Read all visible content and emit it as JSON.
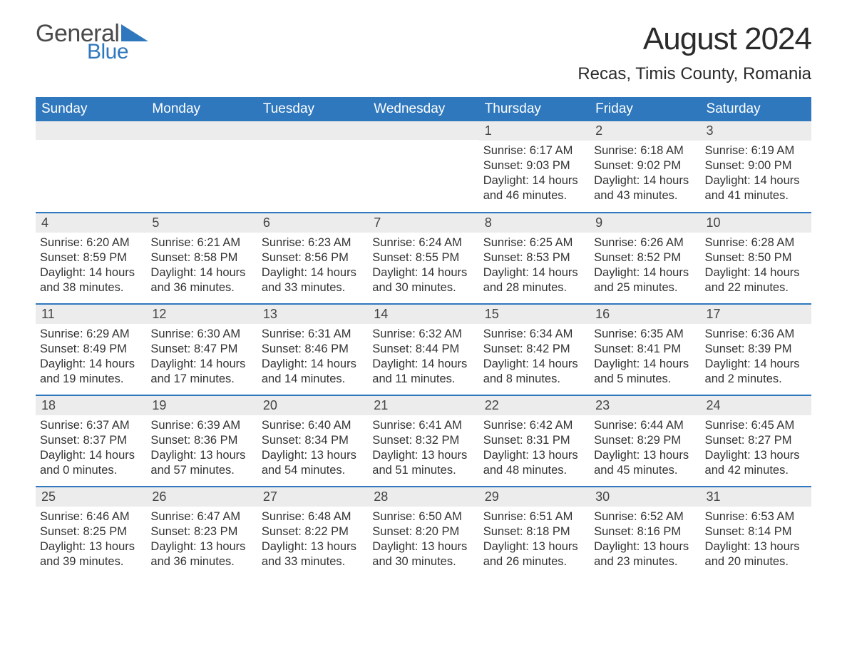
{
  "brand": {
    "word1": "General",
    "word2": "Blue",
    "accent_color": "#2f78bd",
    "text_color": "#4a4a4a"
  },
  "title": "August 2024",
  "location": "Recas, Timis County, Romania",
  "colors": {
    "header_bg": "#2f78bd",
    "header_text": "#ffffff",
    "daynum_bg": "#ececec",
    "body_text": "#333333",
    "rule": "#2f78bd",
    "page_bg": "#ffffff"
  },
  "weekdays": [
    "Sunday",
    "Monday",
    "Tuesday",
    "Wednesday",
    "Thursday",
    "Friday",
    "Saturday"
  ],
  "labels": {
    "sunrise": "Sunrise:",
    "sunset": "Sunset:",
    "daylight": "Daylight:"
  },
  "first_weekday_index": 4,
  "days": [
    {
      "n": 1,
      "sunrise": "6:17 AM",
      "sunset": "9:03 PM",
      "daylight": "14 hours and 46 minutes."
    },
    {
      "n": 2,
      "sunrise": "6:18 AM",
      "sunset": "9:02 PM",
      "daylight": "14 hours and 43 minutes."
    },
    {
      "n": 3,
      "sunrise": "6:19 AM",
      "sunset": "9:00 PM",
      "daylight": "14 hours and 41 minutes."
    },
    {
      "n": 4,
      "sunrise": "6:20 AM",
      "sunset": "8:59 PM",
      "daylight": "14 hours and 38 minutes."
    },
    {
      "n": 5,
      "sunrise": "6:21 AM",
      "sunset": "8:58 PM",
      "daylight": "14 hours and 36 minutes."
    },
    {
      "n": 6,
      "sunrise": "6:23 AM",
      "sunset": "8:56 PM",
      "daylight": "14 hours and 33 minutes."
    },
    {
      "n": 7,
      "sunrise": "6:24 AM",
      "sunset": "8:55 PM",
      "daylight": "14 hours and 30 minutes."
    },
    {
      "n": 8,
      "sunrise": "6:25 AM",
      "sunset": "8:53 PM",
      "daylight": "14 hours and 28 minutes."
    },
    {
      "n": 9,
      "sunrise": "6:26 AM",
      "sunset": "8:52 PM",
      "daylight": "14 hours and 25 minutes."
    },
    {
      "n": 10,
      "sunrise": "6:28 AM",
      "sunset": "8:50 PM",
      "daylight": "14 hours and 22 minutes."
    },
    {
      "n": 11,
      "sunrise": "6:29 AM",
      "sunset": "8:49 PM",
      "daylight": "14 hours and 19 minutes."
    },
    {
      "n": 12,
      "sunrise": "6:30 AM",
      "sunset": "8:47 PM",
      "daylight": "14 hours and 17 minutes."
    },
    {
      "n": 13,
      "sunrise": "6:31 AM",
      "sunset": "8:46 PM",
      "daylight": "14 hours and 14 minutes."
    },
    {
      "n": 14,
      "sunrise": "6:32 AM",
      "sunset": "8:44 PM",
      "daylight": "14 hours and 11 minutes."
    },
    {
      "n": 15,
      "sunrise": "6:34 AM",
      "sunset": "8:42 PM",
      "daylight": "14 hours and 8 minutes."
    },
    {
      "n": 16,
      "sunrise": "6:35 AM",
      "sunset": "8:41 PM",
      "daylight": "14 hours and 5 minutes."
    },
    {
      "n": 17,
      "sunrise": "6:36 AM",
      "sunset": "8:39 PM",
      "daylight": "14 hours and 2 minutes."
    },
    {
      "n": 18,
      "sunrise": "6:37 AM",
      "sunset": "8:37 PM",
      "daylight": "14 hours and 0 minutes."
    },
    {
      "n": 19,
      "sunrise": "6:39 AM",
      "sunset": "8:36 PM",
      "daylight": "13 hours and 57 minutes."
    },
    {
      "n": 20,
      "sunrise": "6:40 AM",
      "sunset": "8:34 PM",
      "daylight": "13 hours and 54 minutes."
    },
    {
      "n": 21,
      "sunrise": "6:41 AM",
      "sunset": "8:32 PM",
      "daylight": "13 hours and 51 minutes."
    },
    {
      "n": 22,
      "sunrise": "6:42 AM",
      "sunset": "8:31 PM",
      "daylight": "13 hours and 48 minutes."
    },
    {
      "n": 23,
      "sunrise": "6:44 AM",
      "sunset": "8:29 PM",
      "daylight": "13 hours and 45 minutes."
    },
    {
      "n": 24,
      "sunrise": "6:45 AM",
      "sunset": "8:27 PM",
      "daylight": "13 hours and 42 minutes."
    },
    {
      "n": 25,
      "sunrise": "6:46 AM",
      "sunset": "8:25 PM",
      "daylight": "13 hours and 39 minutes."
    },
    {
      "n": 26,
      "sunrise": "6:47 AM",
      "sunset": "8:23 PM",
      "daylight": "13 hours and 36 minutes."
    },
    {
      "n": 27,
      "sunrise": "6:48 AM",
      "sunset": "8:22 PM",
      "daylight": "13 hours and 33 minutes."
    },
    {
      "n": 28,
      "sunrise": "6:50 AM",
      "sunset": "8:20 PM",
      "daylight": "13 hours and 30 minutes."
    },
    {
      "n": 29,
      "sunrise": "6:51 AM",
      "sunset": "8:18 PM",
      "daylight": "13 hours and 26 minutes."
    },
    {
      "n": 30,
      "sunrise": "6:52 AM",
      "sunset": "8:16 PM",
      "daylight": "13 hours and 23 minutes."
    },
    {
      "n": 31,
      "sunrise": "6:53 AM",
      "sunset": "8:14 PM",
      "daylight": "13 hours and 20 minutes."
    }
  ]
}
